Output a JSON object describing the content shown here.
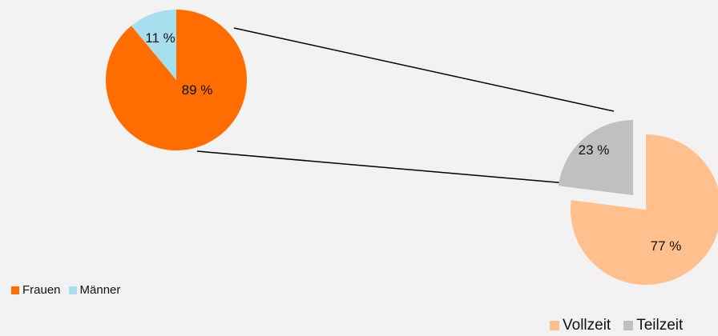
{
  "chart_data": [
    {
      "type": "pie",
      "categories": [
        "Frauen",
        "Männer"
      ],
      "values": [
        89,
        11
      ],
      "labels": [
        "89 %",
        "11 %"
      ],
      "colors": [
        "#ff6d00",
        "#a8dfee"
      ],
      "legend": {
        "position": "bottom-left",
        "entries": [
          "Frauen",
          "Männer"
        ]
      }
    },
    {
      "type": "pie",
      "categories": [
        "Vollzeit",
        "Teilzeit"
      ],
      "values": [
        77,
        23
      ],
      "labels": [
        "77 %",
        "23 %"
      ],
      "colors": [
        "#ffc08d",
        "#c0c0c0"
      ],
      "exploded": "Teilzeit",
      "legend": {
        "position": "bottom-right",
        "entries": [
          "Vollzeit",
          "Teilzeit"
        ]
      }
    }
  ],
  "connector_color": "#000000",
  "background_color": "#f2f2f2"
}
